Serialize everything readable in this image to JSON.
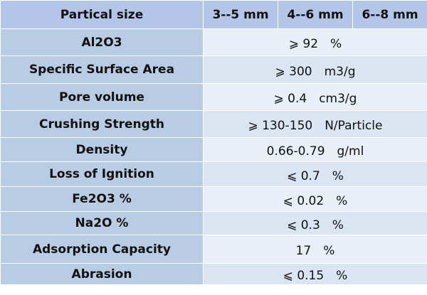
{
  "table": {
    "header": [
      "Partical size",
      "3--5 mm",
      "4--6 mm",
      "6--8 mm"
    ],
    "rows": [
      [
        "Al2O3",
        "⩾ 92　%"
      ],
      [
        "Specific Surface Area",
        "⩾ 300　m3/g"
      ],
      [
        "Pore volume",
        "⩾ 0.4　cm3/g"
      ],
      [
        "Crushing Strength",
        "⩾ 130-150　N/Particle"
      ],
      [
        "Density",
        "0.66-0.79　g/ml"
      ],
      [
        "Loss of Ignition",
        "⩽ 0.7　%"
      ],
      [
        "Fe2O3 %",
        "⩽ 0.02　%"
      ],
      [
        "Na2O %",
        "⩽ 0.3　%"
      ],
      [
        "Adsorption Capacity",
        "17　%"
      ],
      [
        "Abrasion",
        "⩽ 0.15　%"
      ]
    ]
  }
}
